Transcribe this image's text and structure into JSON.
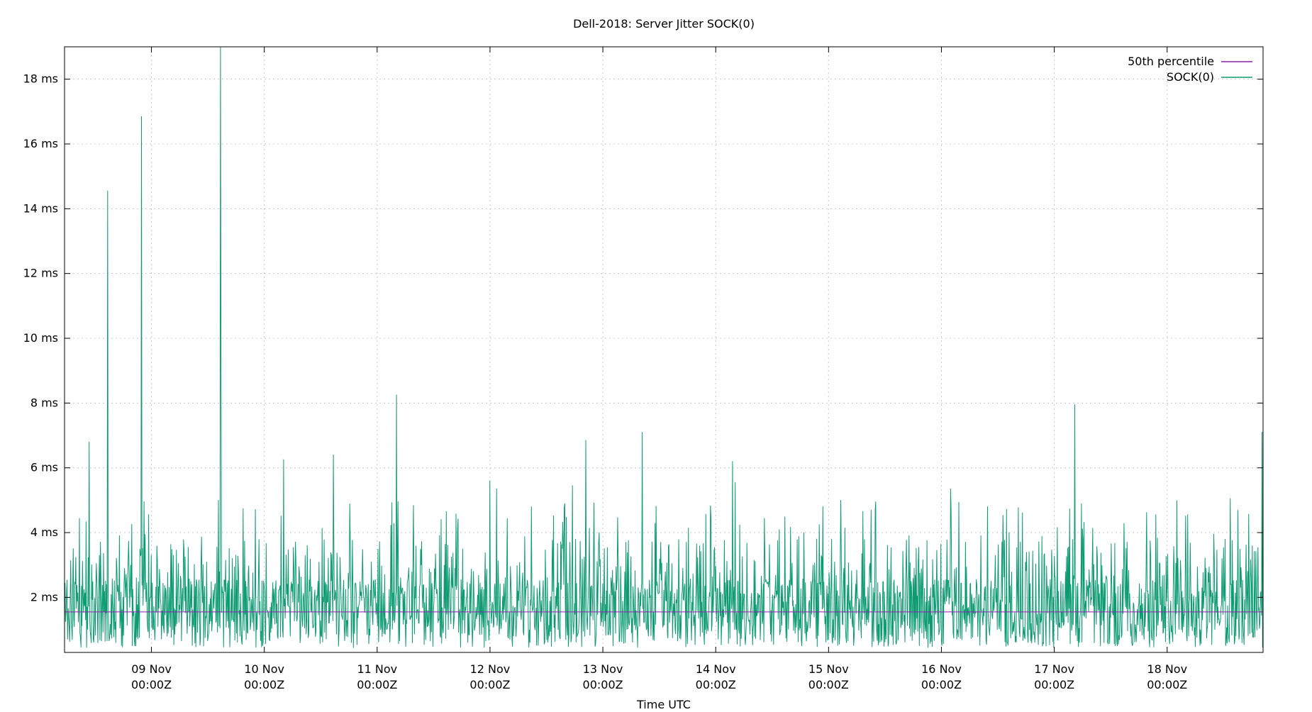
{
  "chart_data": {
    "type": "line",
    "title": "Dell-2018: Server Jitter SOCK(0)",
    "xlabel": "Time UTC",
    "ylabel": "",
    "x_unit": "days (Nov)",
    "xlim": [
      8.23,
      18.85
    ],
    "ylim": [
      0.3,
      19.0
    ],
    "grid": true,
    "legend_position": "top-right",
    "x_ticks": [
      {
        "value": 9,
        "line1": "09 Nov",
        "line2": "00:00Z"
      },
      {
        "value": 10,
        "line1": "10 Nov",
        "line2": "00:00Z"
      },
      {
        "value": 11,
        "line1": "11 Nov",
        "line2": "00:00Z"
      },
      {
        "value": 12,
        "line1": "12 Nov",
        "line2": "00:00Z"
      },
      {
        "value": 13,
        "line1": "13 Nov",
        "line2": "00:00Z"
      },
      {
        "value": 14,
        "line1": "14 Nov",
        "line2": "00:00Z"
      },
      {
        "value": 15,
        "line1": "15 Nov",
        "line2": "00:00Z"
      },
      {
        "value": 16,
        "line1": "16 Nov",
        "line2": "00:00Z"
      },
      {
        "value": 17,
        "line1": "17 Nov",
        "line2": "00:00Z"
      },
      {
        "value": 18,
        "line1": "18 Nov",
        "line2": "00:00Z"
      }
    ],
    "y_ticks": [
      {
        "value": 2,
        "label": "2 ms"
      },
      {
        "value": 4,
        "label": "4 ms"
      },
      {
        "value": 6,
        "label": "6 ms"
      },
      {
        "value": 8,
        "label": "8 ms"
      },
      {
        "value": 10,
        "label": "10 ms"
      },
      {
        "value": 12,
        "label": "12 ms"
      },
      {
        "value": 14,
        "label": "14 ms"
      },
      {
        "value": 16,
        "label": "16 ms"
      },
      {
        "value": 18,
        "label": "18 ms"
      }
    ],
    "series": [
      {
        "name": "50th percentile",
        "color": "#8b1fa8",
        "kind": "constant",
        "y": 1.55
      },
      {
        "name": "SOCK(0)",
        "color": "#0e9b72",
        "kind": "jitter",
        "points_per_day": 220,
        "typical_range": [
          0.5,
          4.5
        ],
        "peaks": [
          {
            "x": 8.45,
            "y": 6.8
          },
          {
            "x": 8.61,
            "y": 14.55
          },
          {
            "x": 8.91,
            "y": 16.85
          },
          {
            "x": 9.61,
            "y": 19.0
          },
          {
            "x": 9.615,
            "y": 9.0
          },
          {
            "x": 10.17,
            "y": 6.25
          },
          {
            "x": 10.61,
            "y": 6.4
          },
          {
            "x": 11.17,
            "y": 8.25
          },
          {
            "x": 12.0,
            "y": 5.6
          },
          {
            "x": 12.06,
            "y": 5.35
          },
          {
            "x": 12.73,
            "y": 5.45
          },
          {
            "x": 12.85,
            "y": 6.85
          },
          {
            "x": 13.35,
            "y": 7.1
          },
          {
            "x": 14.15,
            "y": 6.2
          },
          {
            "x": 14.17,
            "y": 5.55
          },
          {
            "x": 15.11,
            "y": 5.0
          },
          {
            "x": 16.08,
            "y": 5.35
          },
          {
            "x": 17.18,
            "y": 7.95
          },
          {
            "x": 18.56,
            "y": 5.05
          },
          {
            "x": 18.84,
            "y": 7.1
          }
        ]
      }
    ]
  }
}
